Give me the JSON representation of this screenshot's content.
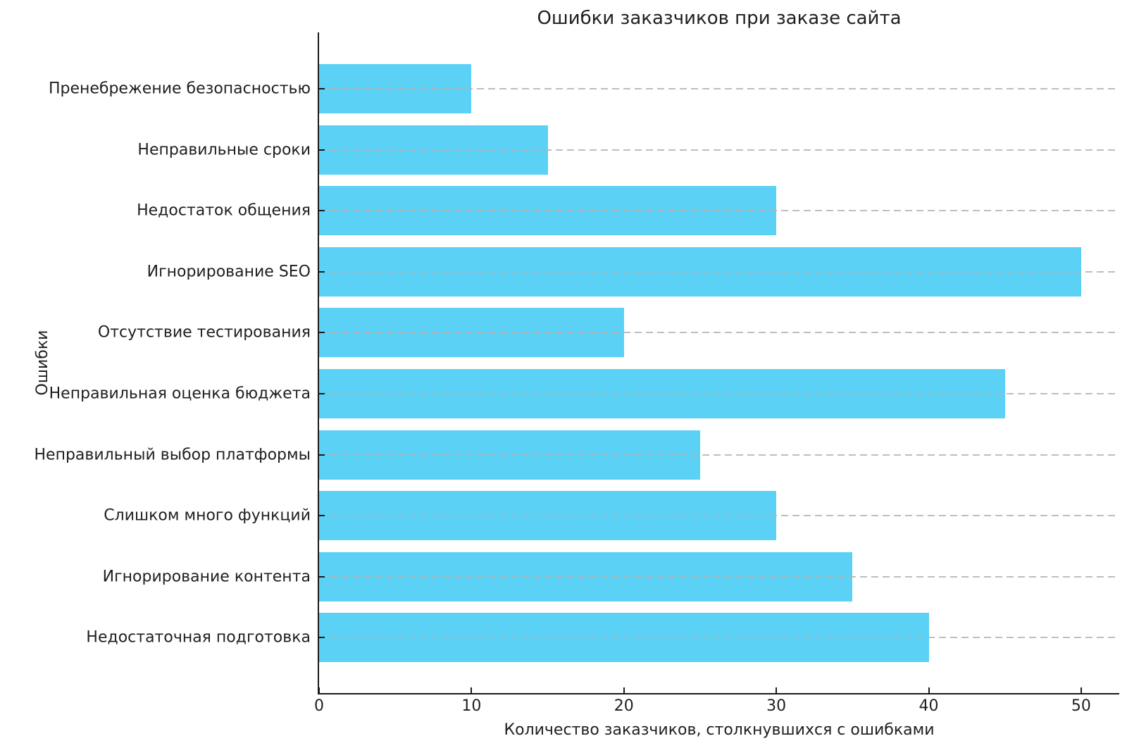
{
  "chart_data": {
    "type": "bar",
    "orientation": "horizontal",
    "category_order": "top-to-bottom",
    "title": "Ошибки заказчиков при заказе сайта",
    "xlabel": "Количество заказчиков, столкнувшихся с ошибками",
    "ylabel": "Ошибки",
    "categories": [
      "Пренебрежение безопасностью",
      "Неправильные сроки",
      "Недостаток общения",
      "Игнорирование SEO",
      "Отсутствие тестирования",
      "Неправильная оценка бюджета",
      "Неправильный выбор платформы",
      "Слишком много функций",
      "Игнорирование контента",
      "Недостаточная подготовка"
    ],
    "values": [
      10,
      15,
      30,
      50,
      20,
      45,
      25,
      30,
      35,
      40
    ],
    "x_ticks": [
      "0",
      "10",
      "20",
      "30",
      "40",
      "50"
    ],
    "x_tick_values": [
      0,
      10,
      20,
      30,
      40,
      50
    ],
    "xlim": [
      0,
      52.5
    ],
    "bar_color": "#5bd1f5",
    "grid": {
      "which": "y-categories",
      "style": "dashed",
      "color": "#b2b2b2",
      "drawn_above_bars": true
    },
    "axis_color": "#1a1a1a",
    "background": "#ffffff",
    "legend": null
  }
}
